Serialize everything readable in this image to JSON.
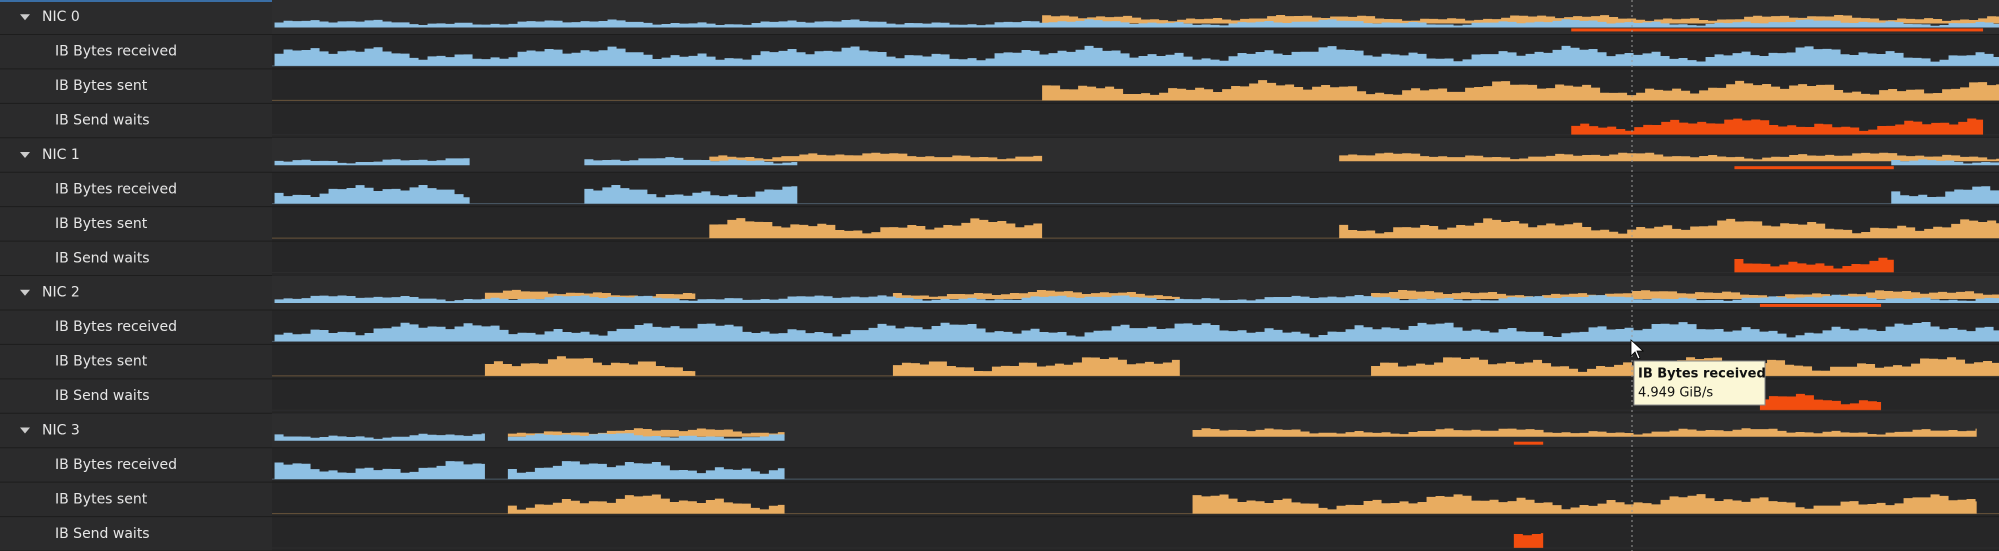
{
  "nics": [
    {
      "label": "NIC 0",
      "metrics": [
        "IB Bytes received",
        "IB Bytes sent",
        "IB Send waits"
      ]
    },
    {
      "label": "NIC 1",
      "metrics": [
        "IB Bytes received",
        "IB Bytes sent",
        "IB Send waits"
      ]
    },
    {
      "label": "NIC 2",
      "metrics": [
        "IB Bytes received",
        "IB Bytes sent",
        "IB Send waits"
      ]
    },
    {
      "label": "NIC 3",
      "metrics": [
        "IB Bytes received",
        "IB Bytes sent",
        "IB Send waits"
      ]
    }
  ],
  "tooltip": {
    "title": "IB Bytes received",
    "value": "4.949 GiB/s"
  }
}
